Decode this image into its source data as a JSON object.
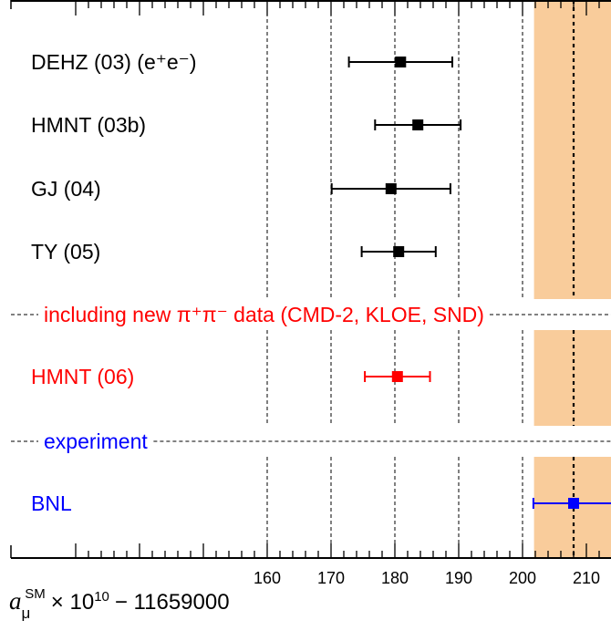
{
  "chart_data": {
    "type": "scatter",
    "xlim": [
      130,
      214
    ],
    "x_ticks": [
      160,
      170,
      180,
      190,
      200,
      210
    ],
    "x_tick_labels": [
      "160",
      "170",
      "180",
      "190",
      "200",
      "210"
    ],
    "grid": "vertical dashed lines at 160, 170, 180, 190, 200",
    "band": {
      "from": 201.8,
      "to": 214,
      "color": "#f9cc9b"
    },
    "reference_line": {
      "x": 208.0
    },
    "sections": [
      {
        "text": "including new π⁺π⁻ data (CMD-2, KLOE, SND)",
        "color": "#ff0000"
      },
      {
        "text": "experiment",
        "color": "#0000ff"
      }
    ],
    "entries": [
      {
        "label": "DEHZ (03) (e⁺e⁻)",
        "value": 180.9,
        "lo": 172.8,
        "hi": 189.0,
        "color": "#000000"
      },
      {
        "label": "HMNT (03b)",
        "value": 183.6,
        "lo": 176.9,
        "hi": 190.3,
        "color": "#000000"
      },
      {
        "label": "GJ (04)",
        "value": 179.4,
        "lo": 170.1,
        "hi": 188.7,
        "color": "#000000"
      },
      {
        "label": "TY (05)",
        "value": 180.6,
        "lo": 174.8,
        "hi": 186.4,
        "color": "#000000"
      },
      {
        "label": "HMNT (06)",
        "value": 180.4,
        "lo": 175.3,
        "hi": 185.5,
        "color": "#ff0000"
      },
      {
        "label": "BNL",
        "value": 208.0,
        "lo": 201.7,
        "hi": 214.3,
        "color": "#0000ff"
      }
    ],
    "xlabel": {
      "symbol": "a",
      "subscript": "μ",
      "superscript": "SM",
      "rest": "× 10",
      "exponent": "10",
      "tail": "− 11659000"
    }
  }
}
